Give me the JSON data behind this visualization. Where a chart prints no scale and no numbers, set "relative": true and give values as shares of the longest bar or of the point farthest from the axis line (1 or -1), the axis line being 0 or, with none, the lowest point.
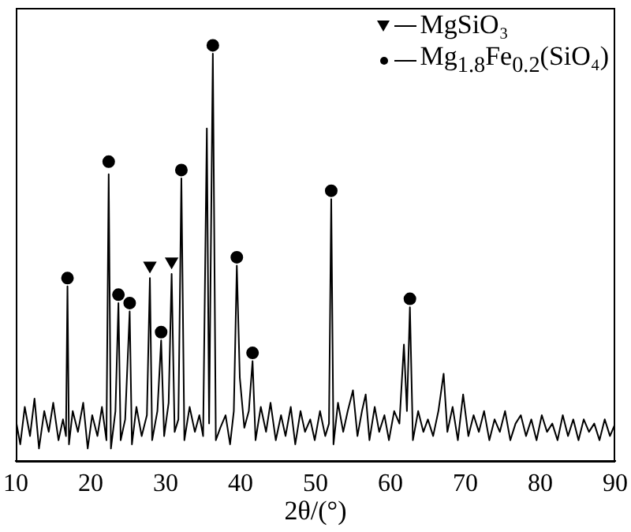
{
  "chart_data": {
    "type": "line",
    "relative": true,
    "xlabel": "2θ/(°)",
    "xlim": [
      10,
      90
    ],
    "xticks": [
      10,
      20,
      30,
      40,
      50,
      60,
      70,
      80,
      90
    ],
    "grid": false,
    "legend": "top right",
    "marker": "none",
    "series": [
      {
        "color": "#000000",
        "x": [
          10,
          10.6,
          11.2,
          11.9,
          12.5,
          13.1,
          13.8,
          14.4,
          15,
          15.7,
          16.3,
          16.7,
          16.9,
          17.1,
          17.6,
          18.3,
          19,
          19.6,
          20.2,
          20.9,
          21.5,
          22.1,
          22.4,
          22.7,
          23.3,
          23.7,
          24,
          24.6,
          25.2,
          25.5,
          26.1,
          26.8,
          27.5,
          27.9,
          28.2,
          28.9,
          29.4,
          29.8,
          30.4,
          30.8,
          31.2,
          31.7,
          32.1,
          32.5,
          33.2,
          33.9,
          34.5,
          35,
          35.5,
          35.8,
          36.3,
          36.7,
          37.3,
          38,
          38.6,
          39.1,
          39.5,
          39.9,
          40.5,
          41.1,
          41.6,
          42,
          42.7,
          43.4,
          44,
          44.7,
          45.4,
          46,
          46.7,
          47.3,
          48,
          48.6,
          49.3,
          49.9,
          50.6,
          51.3,
          51.8,
          52.1,
          52.4,
          53,
          53.7,
          54.3,
          55,
          55.6,
          56.2,
          56.7,
          57.2,
          57.9,
          58.5,
          59.2,
          59.8,
          60.5,
          61.2,
          61.8,
          62.2,
          62.6,
          63,
          63.7,
          64.4,
          65,
          65.7,
          66.4,
          67.1,
          67.6,
          68.3,
          69,
          69.7,
          70.4,
          71.1,
          71.8,
          72.5,
          73.2,
          73.9,
          74.6,
          75.3,
          76,
          76.7,
          77.4,
          78.1,
          78.8,
          79.5,
          80.2,
          80.9,
          81.6,
          82.3,
          83,
          83.7,
          84.4,
          85.1,
          85.8,
          86.5,
          87.2,
          87.9,
          88.6,
          89.3,
          90
        ],
        "values": [
          0.1,
          0.04,
          0.13,
          0.06,
          0.15,
          0.03,
          0.12,
          0.07,
          0.14,
          0.05,
          0.1,
          0.06,
          0.42,
          0.04,
          0.12,
          0.07,
          0.14,
          0.03,
          0.11,
          0.06,
          0.13,
          0.05,
          0.69,
          0.03,
          0.12,
          0.38,
          0.05,
          0.1,
          0.36,
          0.04,
          0.13,
          0.06,
          0.11,
          0.44,
          0.05,
          0.12,
          0.29,
          0.06,
          0.14,
          0.45,
          0.07,
          0.1,
          0.68,
          0.05,
          0.13,
          0.07,
          0.11,
          0.06,
          0.8,
          0.09,
          0.98,
          0.05,
          0.08,
          0.11,
          0.04,
          0.12,
          0.47,
          0.2,
          0.08,
          0.12,
          0.24,
          0.05,
          0.13,
          0.07,
          0.14,
          0.05,
          0.11,
          0.06,
          0.13,
          0.04,
          0.12,
          0.07,
          0.1,
          0.05,
          0.12,
          0.06,
          0.09,
          0.63,
          0.04,
          0.14,
          0.07,
          0.12,
          0.17,
          0.06,
          0.12,
          0.16,
          0.05,
          0.13,
          0.07,
          0.11,
          0.05,
          0.12,
          0.09,
          0.28,
          0.12,
          0.37,
          0.05,
          0.12,
          0.07,
          0.1,
          0.06,
          0.12,
          0.21,
          0.07,
          0.13,
          0.05,
          0.16,
          0.06,
          0.11,
          0.07,
          0.12,
          0.05,
          0.1,
          0.07,
          0.12,
          0.05,
          0.09,
          0.11,
          0.06,
          0.1,
          0.05,
          0.11,
          0.07,
          0.09,
          0.05,
          0.11,
          0.06,
          0.1,
          0.05,
          0.1,
          0.07,
          0.09,
          0.05,
          0.1,
          0.06,
          0.09
        ]
      },
      {
        "type": "scatter",
        "name": "MgSiO₃",
        "color": "#000000",
        "marker": "triangle",
        "x": [
          27.9,
          30.8
        ],
        "values": [
          0.47,
          0.48
        ]
      },
      {
        "type": "scatter",
        "name": "Mg$_{1.8}$Fe$_{0.2}$(SiO₄)",
        "color": "#000000",
        "marker": "circle",
        "x": [
          16.9,
          22.4,
          23.7,
          25.2,
          29.4,
          32.1,
          36.3,
          39.5,
          41.6,
          52.1,
          62.6
        ],
        "values": [
          0.44,
          0.72,
          0.4,
          0.38,
          0.31,
          0.7,
          1,
          0.49,
          0.26,
          0.65,
          0.39
        ]
      }
    ]
  }
}
